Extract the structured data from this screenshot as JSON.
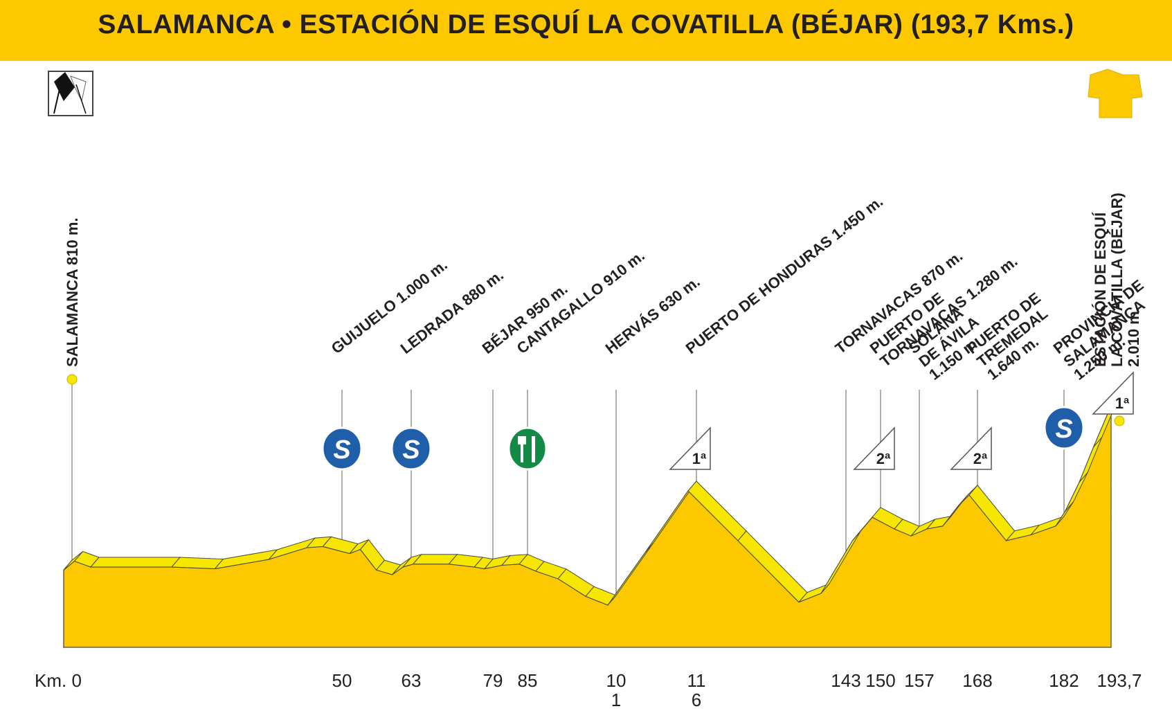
{
  "title": "SALAMANCA • ESTACIÓN DE ESQUÍ LA COVATILLA (BÉJAR) (193,7 Kms.)",
  "colors": {
    "title_bar": "#fcc800",
    "profile_fill": "#fcc800",
    "profile_top": "#f6e600",
    "profile_edge": "#4a4a3a",
    "sprint_blue": "#1f5ea8",
    "feed_green": "#138a45",
    "dot_yellow": "#f6e600",
    "text": "#231f20"
  },
  "icons": {
    "start": "checkered-flag-icon",
    "finish": "leader-jersey-icon",
    "sprint": "sprint-s-icon",
    "feed": "feed-zone-icon",
    "climb": "climb-category-icon"
  },
  "chart_data": {
    "type": "area",
    "title": "SALAMANCA • ESTACIÓN DE ESQUÍ LA COVATILLA (BÉJAR) (193,7 Kms.)",
    "xlabel": "Km.",
    "ylabel": "",
    "xlim": [
      0,
      193.7
    ],
    "grid": false,
    "x_tick_labels": [
      {
        "km": 0,
        "label": "Km. 0"
      },
      {
        "km": 50,
        "label": "50"
      },
      {
        "km": 63,
        "label": "63"
      },
      {
        "km": 79,
        "label": "79"
      },
      {
        "km": 85,
        "label": "85"
      },
      {
        "km": 101,
        "label": "10\n1"
      },
      {
        "km": 116,
        "label": "11\n6"
      },
      {
        "km": 143,
        "label": "143"
      },
      {
        "km": 150,
        "label": "150"
      },
      {
        "km": 157,
        "label": "157"
      },
      {
        "km": 168,
        "label": "168"
      },
      {
        "km": 182,
        "label": "182"
      },
      {
        "km": 193.7,
        "label": "193,7"
      }
    ],
    "profile": {
      "x": [
        0,
        2,
        5,
        20,
        28,
        38,
        45,
        48,
        53,
        55,
        58,
        61,
        63,
        65,
        72,
        77,
        79,
        82,
        85,
        88,
        92,
        97,
        101,
        108,
        116,
        125,
        136,
        140,
        146,
        150,
        154,
        157,
        160,
        163,
        166,
        168,
        174,
        178,
        182,
        184,
        187,
        190,
        193.7
      ],
      "y": [
        810,
        825,
        815,
        815,
        812,
        828,
        848,
        850,
        838,
        845,
        810,
        802,
        815,
        820,
        820,
        815,
        812,
        818,
        820,
        808,
        795,
        765,
        750,
        840,
        945,
        860,
        755,
        770,
        860,
        900,
        880,
        868,
        880,
        885,
        920,
        938,
        860,
        870,
        885,
        910,
        960,
        1020,
        1090
      ]
    },
    "annotations": [
      {
        "km": 0,
        "label": "SALAMANCA  810 m."
      },
      {
        "km": 50,
        "label": "GUIJUELO  1.000 m."
      },
      {
        "km": 63,
        "label": "LEDRADA  880 m."
      },
      {
        "km": 79,
        "label": "BÉJAR  950 m."
      },
      {
        "km": 85,
        "label": "CANTAGALLO  910 m."
      },
      {
        "km": 101,
        "label": "HERVÁS  630 m."
      },
      {
        "km": 116,
        "label": "PUERTO DE HONDURAS  1.450 m."
      },
      {
        "km": 143,
        "label": "TORNAVACAS  870 m."
      },
      {
        "km": 150,
        "label": "PUERTO DE\nTORNAVACAS  1.280 m."
      },
      {
        "km": 157,
        "label": "SOLANA\nDE ÁVILA\n1.150 m."
      },
      {
        "km": 168,
        "label": "PUERTO DE\nTREMEDAL\n1.640 m."
      },
      {
        "km": 182,
        "label": "PROVINCIA DE\nSALAMANCA\n1.250 m."
      },
      {
        "km": 193.7,
        "label": "ESTACIÓN DE ESQUÍ\nLA COVATILLA (BÉJAR)\n2.010 m."
      }
    ],
    "climbs": [
      {
        "km": 116,
        "category": "1ª"
      },
      {
        "km": 150,
        "category": "2ª"
      },
      {
        "km": 168,
        "category": "2ª"
      },
      {
        "km": 193.7,
        "category": "1ª"
      }
    ],
    "sprints": [
      {
        "km": 50,
        "symbol": "S"
      },
      {
        "km": 63,
        "symbol": "S"
      },
      {
        "km": 182,
        "symbol": "S"
      }
    ],
    "feed_zones": [
      {
        "km": 85
      }
    ]
  }
}
